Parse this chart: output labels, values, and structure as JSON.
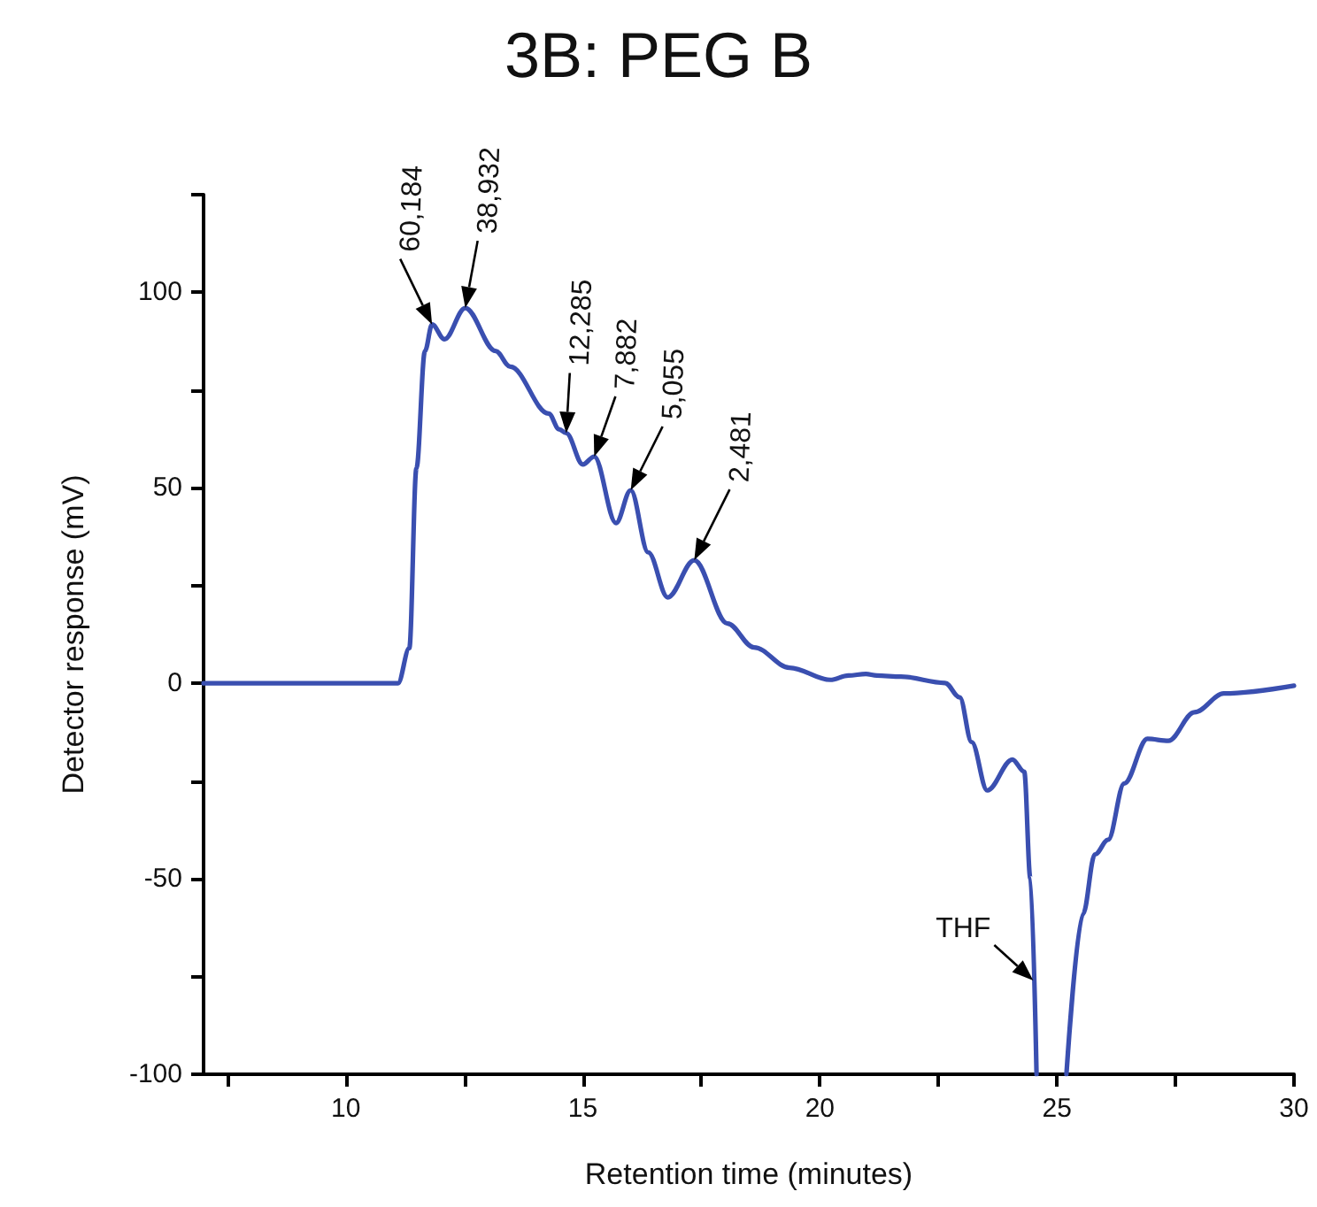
{
  "chart_data": {
    "type": "line",
    "title": "3B: PEG B",
    "xlabel": "Retention time (minutes)",
    "ylabel": "Detector response (mV)",
    "xlim": [
      7,
      30
    ],
    "xticks": [
      {
        "value": 7.5,
        "label": null
      },
      10,
      {
        "value": 12.5,
        "label": null
      },
      15,
      {
        "value": 17.5,
        "label": null
      },
      20,
      {
        "value": 22.5,
        "label": null
      },
      25,
      {
        "value": 27.5,
        "label": null
      },
      30
    ],
    "ylim": [
      -100,
      125
    ],
    "yticks": [
      -100,
      {
        "value": -75,
        "label": null
      },
      -50,
      {
        "value": -25,
        "label": null
      },
      0,
      {
        "value": 25,
        "label": null
      },
      50,
      {
        "value": 75,
        "label": null
      },
      100,
      {
        "value": 125,
        "label": null
      }
    ],
    "grid": false,
    "series": [
      {
        "color": "#3a4fb0",
        "x": [
          7,
          11.1,
          11.34,
          11.49,
          11.67,
          11.82,
          12.08,
          12.52,
          13.16,
          13.47,
          14.28,
          14.5,
          14.65,
          15.0,
          15.24,
          15.7,
          16.01,
          16.38,
          16.79,
          17.35,
          18.05,
          18.61,
          19.36,
          20.22,
          20.6,
          20.97,
          21.2,
          21.71,
          22.64,
          22.95,
          23.2,
          23.53,
          24.06,
          24.31,
          24.44,
          24.57,
          24.9,
          25.2,
          25.55,
          25.8,
          26.08,
          26.42,
          26.91,
          27.35,
          27.9,
          28.52,
          30
        ],
        "values": [
          0,
          0,
          9,
          55,
          85,
          91.8,
          88,
          96,
          85,
          81,
          69,
          65,
          64,
          56,
          58,
          41,
          49.4,
          33.5,
          22,
          31.5,
          15.3,
          9.2,
          4,
          0.9,
          2,
          2.4,
          2,
          1.7,
          0.1,
          -3.6,
          -15,
          -27.4,
          -19.5,
          -22.6,
          -49.9,
          -100,
          null,
          -100,
          -59,
          -43.8,
          -40,
          -25.6,
          -14.2,
          -14.7,
          -7.4,
          -2.6,
          -0.6
        ]
      }
    ],
    "annotations": [
      {
        "text": "60,184",
        "x": 11.82,
        "y": 91.8
      },
      {
        "text": "38,932",
        "x": 12.52,
        "y": 96
      },
      {
        "text": "12,285",
        "x": 14.65,
        "y": 64
      },
      {
        "text": "7,882",
        "x": 15.24,
        "y": 58
      },
      {
        "text": "5,055",
        "x": 16.01,
        "y": 49.4
      },
      {
        "text": "2,481",
        "x": 17.35,
        "y": 31.5
      },
      {
        "text": "THF",
        "x": 24.5,
        "y": -76
      }
    ]
  }
}
